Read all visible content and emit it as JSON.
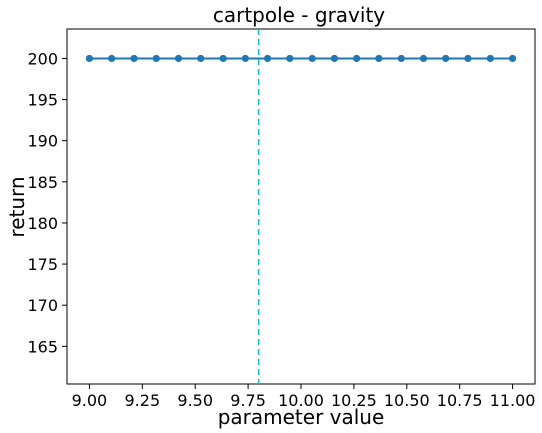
{
  "chart_data": {
    "type": "line",
    "title": "cartpole - gravity",
    "xlabel": "parameter value",
    "ylabel": "return",
    "xlim": [
      8.894,
      11.106
    ],
    "ylim": [
      160.42,
      203.58
    ],
    "x_ticks": [
      9.0,
      9.25,
      9.5,
      9.75,
      10.0,
      10.25,
      10.5,
      10.75,
      11.0
    ],
    "x_tick_labels": [
      "9.00",
      "9.25",
      "9.50",
      "9.75",
      "10.00",
      "10.25",
      "10.50",
      "10.75",
      "11.00"
    ],
    "y_ticks": [
      165,
      170,
      175,
      180,
      185,
      190,
      195,
      200
    ],
    "y_tick_labels": [
      "165",
      "170",
      "175",
      "180",
      "185",
      "190",
      "195",
      "200"
    ],
    "grid": false,
    "series": [
      {
        "x": [
          9.0,
          9.105,
          9.211,
          9.316,
          9.421,
          9.526,
          9.632,
          9.737,
          9.842,
          9.947,
          10.053,
          10.158,
          10.263,
          10.368,
          10.474,
          10.579,
          10.684,
          10.789,
          10.895,
          11.0
        ],
        "values": [
          200,
          200,
          200,
          200,
          200,
          200,
          200,
          200,
          200,
          200,
          200,
          200,
          200,
          200,
          200,
          200,
          200,
          200,
          200,
          200
        ],
        "color": "#1f77b4",
        "marker": "circle"
      }
    ],
    "reference_lines": [
      {
        "orientation": "vertical",
        "x": 9.8,
        "style": "dashed",
        "color": "#17becf"
      }
    ]
  }
}
